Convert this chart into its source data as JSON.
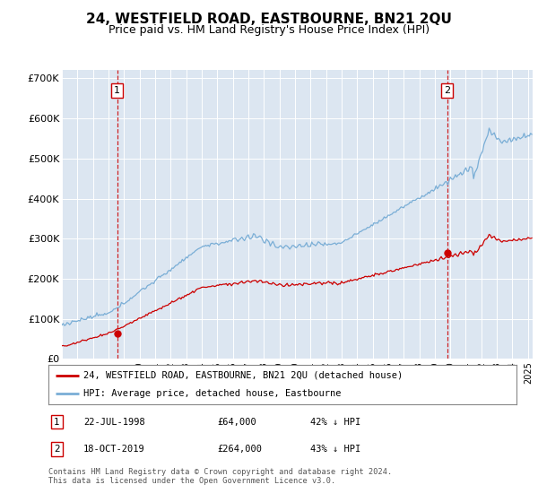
{
  "title": "24, WESTFIELD ROAD, EASTBOURNE, BN21 2QU",
  "subtitle": "Price paid vs. HM Land Registry's House Price Index (HPI)",
  "ylim": [
    0,
    720000
  ],
  "yticks": [
    0,
    100000,
    200000,
    300000,
    400000,
    500000,
    600000,
    700000
  ],
  "ytick_labels": [
    "£0",
    "£100K",
    "£200K",
    "£300K",
    "£400K",
    "£500K",
    "£600K",
    "£700K"
  ],
  "plot_bg": "#dce6f1",
  "transaction1": {
    "date": 1998.55,
    "price": 64000,
    "label": "1"
  },
  "transaction2": {
    "date": 2019.79,
    "price": 264000,
    "label": "2"
  },
  "legend_line1": "24, WESTFIELD ROAD, EASTBOURNE, BN21 2QU (detached house)",
  "legend_line2": "HPI: Average price, detached house, Eastbourne",
  "footer": "Contains HM Land Registry data © Crown copyright and database right 2024.\nThis data is licensed under the Open Government Licence v3.0.",
  "red_color": "#cc0000",
  "blue_color": "#7aaed6",
  "dashed_color": "#cc0000",
  "xlim_start": 1995.0,
  "xlim_end": 2025.3
}
